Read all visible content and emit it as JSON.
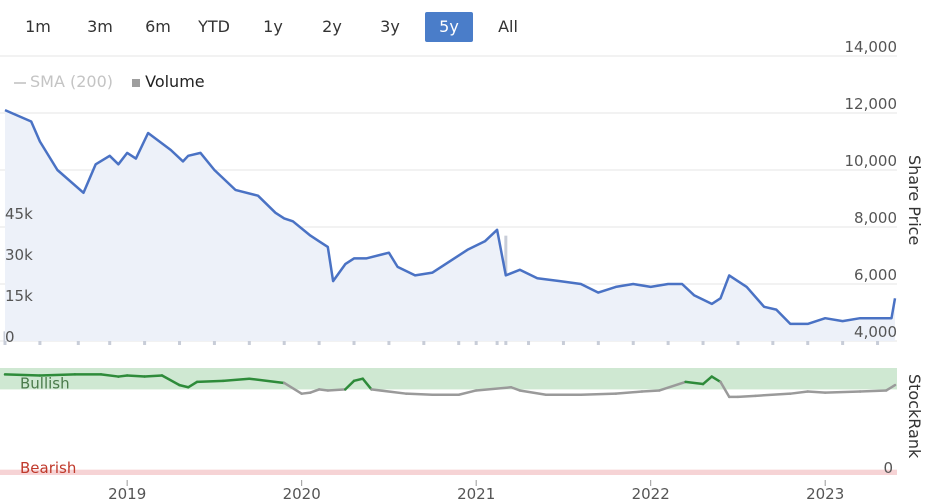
{
  "range_buttons": [
    {
      "label": "1m",
      "active": false
    },
    {
      "label": "3m",
      "active": false
    },
    {
      "label": "6m",
      "active": false
    },
    {
      "label": "YTD",
      "active": false
    },
    {
      "label": "1y",
      "active": false
    },
    {
      "label": "2y",
      "active": false
    },
    {
      "label": "3y",
      "active": false
    },
    {
      "label": "5y",
      "active": true
    },
    {
      "label": "All",
      "active": false
    }
  ],
  "legend": {
    "sma_label": "SMA (200)",
    "volume_label": "Volume"
  },
  "colors": {
    "price": "#4a72c4",
    "bullish": "#2e8b3a",
    "neutral": "#9a9a9a",
    "bullish_band": "#cfe8d2",
    "bearish_band": "#f6d3d5",
    "bearish_text": "#c0392b",
    "active_button": "#4a7dc9",
    "volume": "#c8cdd8",
    "grid": "#e4e4e4"
  },
  "chart_data": [
    {
      "type": "line",
      "series": [
        {
          "name": "Share Price",
          "x": [
            2018.3,
            2018.45,
            2018.5,
            2018.6,
            2018.75,
            2018.82,
            2018.9,
            2018.95,
            2019.0,
            2019.05,
            2019.12,
            2019.25,
            2019.32,
            2019.35,
            2019.42,
            2019.5,
            2019.62,
            2019.75,
            2019.85,
            2019.9,
            2019.95,
            2020.05,
            2020.1,
            2020.15,
            2020.18,
            2020.25,
            2020.3,
            2020.37,
            2020.5,
            2020.55,
            2020.65,
            2020.75,
            2020.85,
            2020.95,
            2021.05,
            2021.12,
            2021.17,
            2021.25,
            2021.35,
            2021.48,
            2021.6,
            2021.7,
            2021.8,
            2021.9,
            2022.0,
            2022.1,
            2022.18,
            2022.25,
            2022.35,
            2022.4,
            2022.45,
            2022.55,
            2022.65,
            2022.72,
            2022.8,
            2022.9,
            2023.0,
            2023.1,
            2023.2,
            2023.3,
            2023.38,
            2023.4
          ],
          "values": [
            12100,
            11700,
            11000,
            10000,
            9200,
            10200,
            10500,
            10200,
            10600,
            10400,
            11300,
            10700,
            10300,
            10500,
            10600,
            10000,
            9300,
            9100,
            8500,
            8300,
            8200,
            7700,
            7500,
            7300,
            6100,
            6700,
            6900,
            6900,
            7100,
            6600,
            6300,
            6400,
            6800,
            7200,
            7500,
            7900,
            6300,
            6500,
            6200,
            6100,
            6000,
            5700,
            5900,
            6000,
            5900,
            6000,
            6000,
            5600,
            5300,
            5500,
            6300,
            5900,
            5200,
            5100,
            4600,
            4600,
            4800,
            4700,
            4800,
            4800,
            4800,
            5500
          ]
        }
      ],
      "ylabel": "Share Price",
      "ylim": [
        4000,
        14000
      ],
      "yticks": [
        "4,000",
        "6,000",
        "8,000",
        "10,000",
        "12,000",
        "14,000"
      ],
      "volume_ticks": [
        "0",
        "15k",
        "30k",
        "45k"
      ],
      "volume": {
        "name": "Volume",
        "ylim": [
          0,
          60000
        ],
        "x": [
          2018.3,
          2018.5,
          2018.72,
          2018.9,
          2019.1,
          2019.3,
          2019.5,
          2019.7,
          2019.9,
          2020.1,
          2020.3,
          2020.5,
          2020.7,
          2020.9,
          2021.0,
          2021.12,
          2021.17,
          2021.3,
          2021.5,
          2021.7,
          2021.9,
          2022.1,
          2022.3,
          2022.5,
          2022.7,
          2022.9,
          2023.1,
          2023.3
        ],
        "values": [
          5000,
          3000,
          8000,
          4000,
          3000,
          5000,
          3000,
          4000,
          6000,
          7000,
          4000,
          3000,
          5000,
          4000,
          11000,
          9000,
          40000,
          4000,
          5000,
          4000,
          5000,
          6000,
          11000,
          9000,
          5000,
          6000,
          5000,
          4000
        ]
      },
      "xticks": [
        "2019",
        "2020",
        "2021",
        "2022",
        "2023"
      ],
      "xtick_values": [
        2019,
        2020,
        2021,
        2022,
        2023
      ]
    },
    {
      "type": "line",
      "ylabel": "StockRank",
      "yticks": [
        "0"
      ],
      "ylim": [
        0,
        100
      ],
      "bands": [
        {
          "label": "Bullish",
          "range": [
            80,
            100
          ]
        },
        {
          "label": "Bearish",
          "range": [
            0,
            5
          ]
        }
      ],
      "series": [
        {
          "name": "StockRank",
          "x": [
            2018.3,
            2018.5,
            2018.7,
            2018.85,
            2018.95,
            2019.0,
            2019.1,
            2019.2,
            2019.3,
            2019.35,
            2019.4,
            2019.55,
            2019.7,
            2019.9,
            2020.0,
            2020.05,
            2020.1,
            2020.15,
            2020.25,
            2020.3,
            2020.35,
            2020.4,
            2020.6,
            2020.75,
            2020.9,
            2021.0,
            2021.2,
            2021.25,
            2021.4,
            2021.6,
            2021.8,
            2021.95,
            2022.05,
            2022.2,
            2022.3,
            2022.35,
            2022.4,
            2022.45,
            2022.5,
            2022.6,
            2022.8,
            2022.9,
            2023.0,
            2023.2,
            2023.35,
            2023.4
          ],
          "values": [
            94,
            93,
            94,
            94,
            92,
            93,
            92,
            93,
            84,
            82,
            87,
            88,
            90,
            86,
            76,
            77,
            80,
            79,
            80,
            88,
            90,
            80,
            76,
            75,
            75,
            79,
            82,
            79,
            75,
            75,
            76,
            78,
            79,
            87,
            85,
            92,
            87,
            73,
            73,
            74,
            76,
            78,
            77,
            78,
            79,
            84
          ]
        }
      ]
    }
  ],
  "stockrank_band_labels": {
    "bullish": "Bullish",
    "bearish": "Bearish",
    "zero": "0"
  }
}
